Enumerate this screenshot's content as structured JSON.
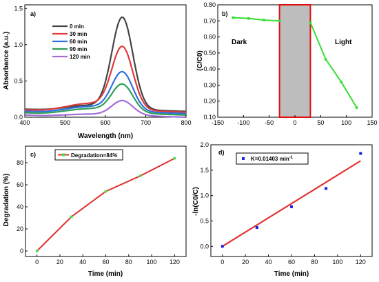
{
  "chart_data": [
    {
      "panel": "a)",
      "type": "line",
      "xlabel": "Wavelength (nm)",
      "ylabel": "Absorbance (a.u.)",
      "xlim": [
        400,
        800
      ],
      "ylim": [
        0,
        1.55
      ],
      "xticks": [
        "400",
        "500",
        "600",
        "700",
        "800"
      ],
      "yticks": [
        "0.0",
        "0.5",
        "1.0",
        "1.5"
      ],
      "legend_position": "top-left",
      "series": [
        {
          "name": "0 min",
          "color": "#444444",
          "peak": 1.47,
          "baseline": 0.1,
          "shoulder": 0.14,
          "tail": 0.06
        },
        {
          "name": "30 min",
          "color": "#e03a3a",
          "peak": 1.02,
          "baseline": 0.09,
          "shoulder": 0.22,
          "tail": 0.05
        },
        {
          "name": "60 min",
          "color": "#2f6fe0",
          "peak": 0.65,
          "baseline": 0.07,
          "shoulder": 0.17,
          "tail": 0.04
        },
        {
          "name": "90 min",
          "color": "#2e9e57",
          "peak": 0.47,
          "baseline": 0.05,
          "shoulder": 0.15,
          "tail": 0.03
        },
        {
          "name": "120 min",
          "color": "#a36dd6",
          "peak": 0.24,
          "baseline": 0.02,
          "shoulder": 0.05,
          "tail": 0.01
        }
      ]
    },
    {
      "panel": "b)",
      "type": "line",
      "xlabel": "",
      "ylabel": "(C/C0)",
      "xlim": [
        -150,
        150
      ],
      "ylim": [
        0.1,
        0.8
      ],
      "xticks": [
        "-150",
        "-100",
        "-50",
        "0",
        "50",
        "100",
        "150"
      ],
      "yticks": [
        "0.10",
        "0.20",
        "0.30",
        "0.40",
        "0.50",
        "0.60",
        "0.70",
        "0.80"
      ],
      "dark_region": [
        -30,
        30
      ],
      "annotations": {
        "dark": "Dark",
        "light": "Light"
      },
      "series": [
        {
          "color": "#33dd33",
          "x": [
            -120,
            -90,
            -60,
            -30,
            30,
            60,
            90,
            120
          ],
          "y": [
            0.72,
            0.715,
            0.705,
            0.7,
            0.69,
            0.46,
            0.32,
            0.16
          ]
        }
      ]
    },
    {
      "panel": "c)",
      "type": "line",
      "xlabel": "Time (min)",
      "ylabel": "Degradation (%)",
      "xlim": [
        -10,
        130
      ],
      "ylim": [
        -5,
        95
      ],
      "xticks": [
        "0",
        "20",
        "40",
        "60",
        "80",
        "100",
        "120"
      ],
      "yticks": [
        "0",
        "20",
        "40",
        "60",
        "80"
      ],
      "legend_position": "top-left",
      "series": [
        {
          "name": "Degradation=84%",
          "color": "#e03030",
          "marker_color": "#44dd44",
          "x": [
            0,
            30,
            60,
            90,
            120
          ],
          "y": [
            0,
            31,
            54,
            68,
            84
          ]
        }
      ]
    },
    {
      "panel": "d)",
      "type": "scatter",
      "xlabel": "Time (min)",
      "ylabel": "-ln(C0/C)",
      "xlim": [
        -10,
        130
      ],
      "ylim": [
        -0.2,
        2.0
      ],
      "xticks": [
        "0",
        "20",
        "40",
        "60",
        "80",
        "100",
        "120"
      ],
      "yticks": [
        "0.0",
        "0.5",
        "1.0",
        "1.5",
        "2.0"
      ],
      "legend_position": "top-left",
      "legend_label": "K=0.01403 min",
      "legend_superscript": "-1",
      "series": [
        {
          "marker_color": "#1f1fdd",
          "x": [
            0,
            30,
            60,
            90,
            120
          ],
          "y": [
            0.0,
            0.37,
            0.78,
            1.14,
            1.83
          ]
        }
      ],
      "fit": {
        "color": "#e03030",
        "slope": 0.01403,
        "intercept": 0.0
      }
    }
  ]
}
